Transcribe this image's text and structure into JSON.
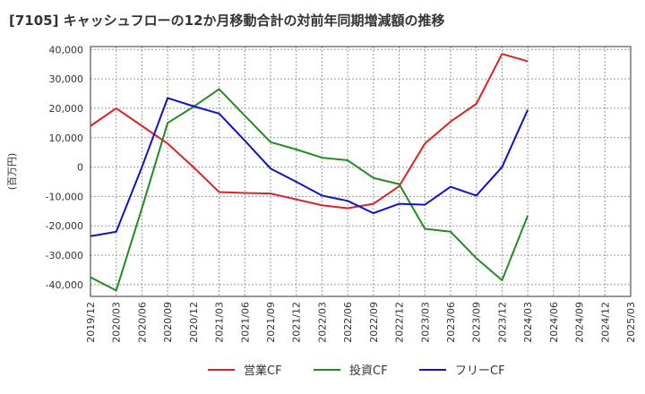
{
  "chart_data": {
    "type": "line",
    "title": "[7105]  キャッシュフローの12か月移動合計の対前年同期増減額の推移",
    "ylabel": "(百万円)",
    "xlabel": "",
    "ylim": [
      -44000,
      41000
    ],
    "yticks": [
      40000,
      30000,
      20000,
      10000,
      0,
      -10000,
      -20000,
      -30000,
      -40000
    ],
    "ytick_labels": [
      "40,000",
      "30,000",
      "20,000",
      "10,000",
      "0",
      "-10,000",
      "-20,000",
      "-30,000",
      "-40,000"
    ],
    "categories": [
      "2019/12",
      "2020/03",
      "2020/06",
      "2020/09",
      "2020/12",
      "2021/03",
      "2021/06",
      "2021/09",
      "2021/12",
      "2022/03",
      "2022/06",
      "2022/09",
      "2022/12",
      "2023/03",
      "2023/06",
      "2023/09",
      "2023/12",
      "2024/03",
      "2024/06",
      "2024/09",
      "2024/12",
      "2025/03"
    ],
    "grid": true,
    "legend_position": "bottom",
    "series": [
      {
        "name": "営業CF",
        "color": "#dd2222",
        "values": [
          14000,
          20000,
          14000,
          8000,
          0,
          -8500,
          -8800,
          -9000,
          -11000,
          -13000,
          -14000,
          -12500,
          -6500,
          8000,
          15500,
          21500,
          38500,
          36000,
          null,
          null,
          null,
          null
        ]
      },
      {
        "name": "投資CF",
        "color": "#228b22",
        "values": [
          -37500,
          -42000,
          -14000,
          15000,
          20500,
          26500,
          17500,
          8500,
          6000,
          3200,
          2300,
          -3700,
          -5800,
          -21000,
          -22000,
          -31000,
          -38500,
          -16500,
          null,
          null,
          null,
          null
        ]
      },
      {
        "name": "フリーCF",
        "color": "#1111cc",
        "values": [
          -23500,
          -22000,
          0,
          23500,
          20700,
          18200,
          9000,
          -500,
          -5000,
          -9700,
          -11500,
          -15700,
          -12500,
          -12800,
          -6700,
          -9700,
          0,
          19500,
          null,
          null,
          null,
          null
        ]
      }
    ]
  }
}
